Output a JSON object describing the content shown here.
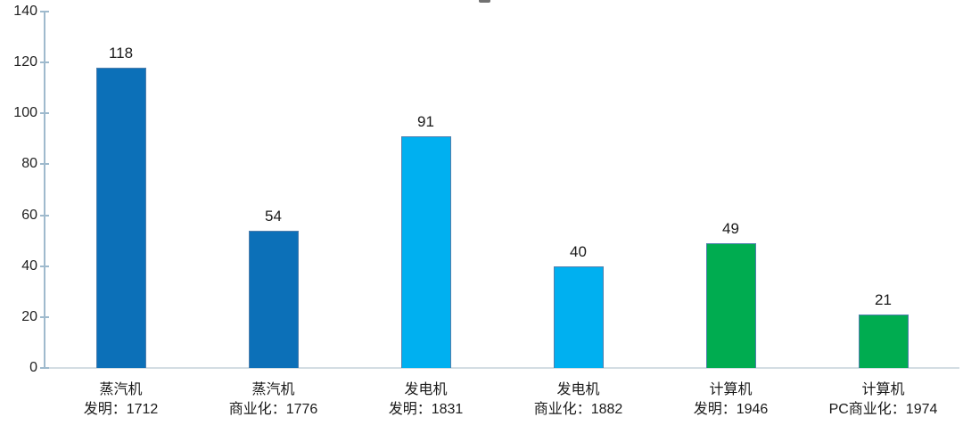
{
  "chart_data": {
    "type": "bar",
    "title": "",
    "xlabel": "",
    "ylabel": "",
    "categories": [
      {
        "line1": "蒸汽机",
        "line2": "发明：1712"
      },
      {
        "line1": "蒸汽机",
        "line2": "商业化：1776"
      },
      {
        "line1": "发电机",
        "line2": "发明：1831"
      },
      {
        "line1": "发电机",
        "line2": "商业化：1882"
      },
      {
        "line1": "计算机",
        "line2": "发明：1946"
      },
      {
        "line1": "计算机",
        "line2": "PC商业化：1974"
      }
    ],
    "values": [
      118,
      54,
      91,
      40,
      49,
      21
    ],
    "bar_colors": [
      "#0C70B8",
      "#0C70B8",
      "#00B0F0",
      "#00B0F0",
      "#00AC50",
      "#00AC50"
    ],
    "bar_border_color": "#4E7FAD",
    "ylim": [
      0,
      140
    ],
    "yticks": [
      0,
      20,
      40,
      60,
      80,
      100,
      120,
      140
    ],
    "grid": false,
    "legend": "none",
    "axis_color": "#9FBACD",
    "baseline_color": "#D3DDE3",
    "tick_label_color": "#1F1F1F",
    "value_label_color": "#1A1A1A"
  }
}
